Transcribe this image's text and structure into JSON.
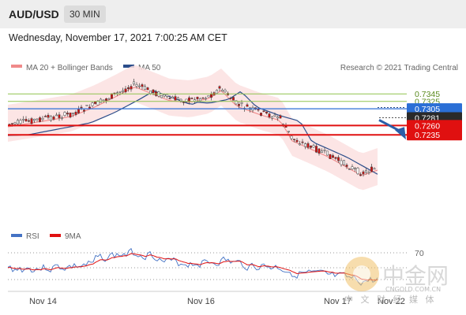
{
  "header": {
    "pair": "AUD/USD",
    "timeframe": "30 MIN"
  },
  "datetime": "Wednesday, November 17, 2021 7:00:25 AM CET",
  "legend": {
    "bb": "MA 20 + Bollinger Bands",
    "ma50": "MA 50",
    "credit": "Research © 2021 Trading Central"
  },
  "rsi_legend": {
    "rsi": "RSI",
    "ma": "9MA"
  },
  "colors": {
    "bb_fill": "#fbe1e1",
    "bb_line": "#f08a8a",
    "ma50": "#2b4d8a",
    "resistance": "#8fc34e",
    "current": "#2b6fd6",
    "support": "#e01010",
    "candle_up": "#ffffff",
    "candle_down": "#d01010",
    "arrow": "#2a5ea8",
    "rsi": "#4472c4",
    "rsi_ma": "#e01010"
  },
  "watermark": {
    "brand": "中金网",
    "url": "CNGOLD.COM.CN",
    "tagline": "中 文 财 经 媒 体"
  },
  "chart_data": {
    "type": "candlestick",
    "title": "AUD/USD",
    "timeframe": "30 MIN",
    "x_labels": [
      "Nov 14",
      "Nov 16",
      "Nov 17",
      "Nov 22"
    ],
    "ylim": [
      0.7225,
      0.739
    ],
    "levels": [
      {
        "value": 0.7345,
        "label": "0.7345",
        "kind": "resistance"
      },
      {
        "value": 0.7325,
        "label": "0.7325",
        "kind": "resistance"
      },
      {
        "value": 0.7305,
        "label": "0.7305",
        "kind": "current"
      },
      {
        "value": 0.7281,
        "label": "0.7281",
        "kind": "last"
      },
      {
        "value": 0.726,
        "label": "0.7260",
        "kind": "support"
      },
      {
        "value": 0.7235,
        "label": "0.7235",
        "kind": "support"
      }
    ],
    "series": [
      {
        "name": "MA 20 + Bollinger Bands",
        "type": "band"
      },
      {
        "name": "MA 50",
        "type": "line"
      }
    ],
    "forecast": {
      "from": 0.7281,
      "to": 0.7235
    },
    "rsi": {
      "label": "70",
      "level": 70
    }
  }
}
